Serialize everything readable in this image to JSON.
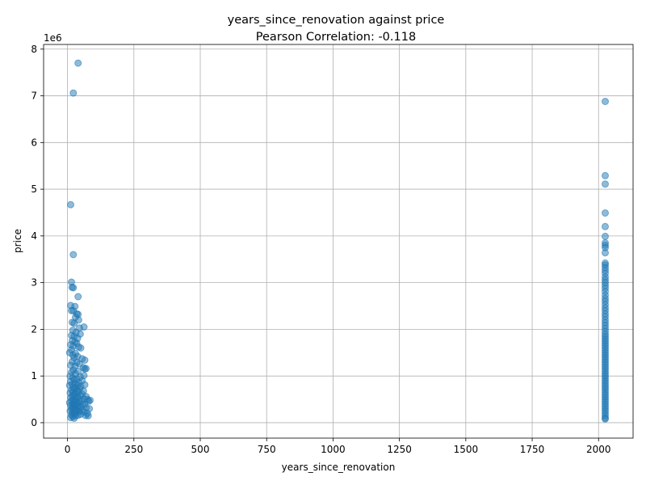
{
  "chart_data": {
    "type": "scatter",
    "title": "years_since_renovation against price",
    "subtitle": "Pearson Correlation: -0.118",
    "xlabel": "years_since_renovation",
    "ylabel": "price",
    "y_offset_label": "1e6",
    "xlim": [
      -90,
      2130
    ],
    "ylim": [
      -330000,
      8100000
    ],
    "x_ticks": [
      0,
      250,
      500,
      750,
      1000,
      1250,
      1500,
      1750,
      2000
    ],
    "y_ticks": [
      0,
      1000000,
      2000000,
      3000000,
      4000000,
      5000000,
      6000000,
      7000000,
      8000000
    ],
    "y_tick_labels": [
      "0",
      "1",
      "2",
      "3",
      "4",
      "5",
      "6",
      "7",
      "8"
    ],
    "grid": true,
    "series": [
      {
        "color": "#1f77b4",
        "points": [
          [
            40,
            7700000
          ],
          [
            22,
            7060000
          ],
          [
            12,
            4670000
          ],
          [
            22,
            3600000
          ],
          [
            15,
            3010000
          ],
          [
            17,
            2900000
          ],
          [
            22,
            2890000
          ],
          [
            40,
            2700000
          ],
          [
            12,
            2510000
          ],
          [
            28,
            2490000
          ],
          [
            15,
            2400000
          ],
          [
            22,
            2400000
          ],
          [
            35,
            2330000
          ],
          [
            40,
            2320000
          ],
          [
            30,
            2260000
          ],
          [
            42,
            2200000
          ],
          [
            18,
            2150000
          ],
          [
            25,
            2130000
          ],
          [
            62,
            2050000
          ],
          [
            45,
            2030000
          ],
          [
            20,
            1980000
          ],
          [
            32,
            1930000
          ],
          [
            48,
            1900000
          ],
          [
            15,
            1870000
          ],
          [
            25,
            1850000
          ],
          [
            38,
            1810000
          ],
          [
            18,
            1760000
          ],
          [
            28,
            1730000
          ],
          [
            35,
            1700000
          ],
          [
            12,
            1670000
          ],
          [
            22,
            1640000
          ],
          [
            42,
            1620000
          ],
          [
            50,
            1600000
          ],
          [
            15,
            1560000
          ],
          [
            8,
            1500000
          ],
          [
            30,
            1480000
          ],
          [
            20,
            1450000
          ],
          [
            38,
            1420000
          ],
          [
            25,
            1390000
          ],
          [
            55,
            1370000
          ],
          [
            65,
            1340000
          ],
          [
            18,
            1310000
          ],
          [
            35,
            1290000
          ],
          [
            45,
            1260000
          ],
          [
            12,
            1230000
          ],
          [
            28,
            1210000
          ],
          [
            60,
            1180000
          ],
          [
            70,
            1160000
          ],
          [
            65,
            1150000
          ],
          [
            22,
            1130000
          ],
          [
            40,
            1100000
          ],
          [
            15,
            1080000
          ],
          [
            30,
            1050000
          ],
          [
            62,
            1010000
          ],
          [
            10,
            1000000
          ],
          [
            48,
            980000
          ],
          [
            20,
            960000
          ],
          [
            35,
            940000
          ],
          [
            25,
            920000
          ],
          [
            55,
            900000
          ],
          [
            12,
            880000
          ],
          [
            42,
            860000
          ],
          [
            30,
            840000
          ],
          [
            18,
            820000
          ],
          [
            65,
            810000
          ],
          [
            8,
            800000
          ],
          [
            38,
            790000
          ],
          [
            50,
            770000
          ],
          [
            22,
            760000
          ],
          [
            28,
            740000
          ],
          [
            45,
            720000
          ],
          [
            15,
            700000
          ],
          [
            35,
            690000
          ],
          [
            60,
            680000
          ],
          [
            20,
            660000
          ],
          [
            40,
            650000
          ],
          [
            10,
            640000
          ],
          [
            30,
            620000
          ],
          [
            55,
            610000
          ],
          [
            25,
            600000
          ],
          [
            48,
            580000
          ],
          [
            18,
            570000
          ],
          [
            70,
            560000
          ],
          [
            38,
            550000
          ],
          [
            12,
            540000
          ],
          [
            32,
            520000
          ],
          [
            62,
            510000
          ],
          [
            22,
            500000
          ],
          [
            75,
            500000
          ],
          [
            85,
            480000
          ],
          [
            45,
            490000
          ],
          [
            15,
            470000
          ],
          [
            28,
            460000
          ],
          [
            52,
            450000
          ],
          [
            80,
            460000
          ],
          [
            35,
            440000
          ],
          [
            8,
            430000
          ],
          [
            42,
            420000
          ],
          [
            20,
            410000
          ],
          [
            65,
            400000
          ],
          [
            25,
            390000
          ],
          [
            58,
            380000
          ],
          [
            12,
            370000
          ],
          [
            38,
            360000
          ],
          [
            30,
            350000
          ],
          [
            48,
            340000
          ],
          [
            18,
            330000
          ],
          [
            70,
            320000
          ],
          [
            22,
            310000
          ],
          [
            40,
            300000
          ],
          [
            82,
            300000
          ],
          [
            15,
            290000
          ],
          [
            55,
            280000
          ],
          [
            28,
            270000
          ],
          [
            35,
            260000
          ],
          [
            10,
            250000
          ],
          [
            45,
            240000
          ],
          [
            62,
            230000
          ],
          [
            20,
            220000
          ],
          [
            32,
            210000
          ],
          [
            75,
            200000
          ],
          [
            25,
            190000
          ],
          [
            50,
            180000
          ],
          [
            15,
            170000
          ],
          [
            40,
            160000
          ],
          [
            68,
            155000
          ],
          [
            30,
            150000
          ],
          [
            78,
            150000
          ],
          [
            20,
            130000
          ],
          [
            12,
            110000
          ],
          [
            25,
            95000
          ],
          [
            2025,
            6880000
          ],
          [
            2025,
            5290000
          ],
          [
            2025,
            5110000
          ],
          [
            2025,
            4490000
          ],
          [
            2025,
            4200000
          ],
          [
            2025,
            3990000
          ],
          [
            2025,
            3850000
          ],
          [
            2025,
            3800000
          ],
          [
            2025,
            3750000
          ],
          [
            2025,
            3640000
          ],
          [
            2025,
            3420000
          ],
          [
            2025,
            3380000
          ],
          [
            2025,
            3320000
          ],
          [
            2025,
            3260000
          ],
          [
            2025,
            3200000
          ],
          [
            2025,
            3120000
          ],
          [
            2025,
            3060000
          ],
          [
            2025,
            3000000
          ],
          [
            2025,
            2940000
          ],
          [
            2025,
            2880000
          ],
          [
            2025,
            2810000
          ],
          [
            2025,
            2730000
          ],
          [
            2025,
            2660000
          ],
          [
            2025,
            2600000
          ],
          [
            2025,
            2530000
          ],
          [
            2025,
            2460000
          ],
          [
            2025,
            2400000
          ],
          [
            2025,
            2330000
          ],
          [
            2025,
            2270000
          ],
          [
            2025,
            2200000
          ],
          [
            2025,
            2140000
          ],
          [
            2025,
            2080000
          ],
          [
            2025,
            2020000
          ],
          [
            2025,
            1960000
          ],
          [
            2025,
            1900000
          ],
          [
            2025,
            1850000
          ],
          [
            2025,
            1800000
          ],
          [
            2025,
            1750000
          ],
          [
            2025,
            1700000
          ],
          [
            2025,
            1650000
          ],
          [
            2025,
            1600000
          ],
          [
            2025,
            1550000
          ],
          [
            2025,
            1500000
          ],
          [
            2025,
            1450000
          ],
          [
            2025,
            1400000
          ],
          [
            2025,
            1350000
          ],
          [
            2025,
            1300000
          ],
          [
            2025,
            1250000
          ],
          [
            2025,
            1200000
          ],
          [
            2025,
            1150000
          ],
          [
            2025,
            1100000
          ],
          [
            2025,
            1050000
          ],
          [
            2025,
            1000000
          ],
          [
            2025,
            950000
          ],
          [
            2025,
            900000
          ],
          [
            2025,
            850000
          ],
          [
            2025,
            800000
          ],
          [
            2025,
            750000
          ],
          [
            2025,
            700000
          ],
          [
            2025,
            650000
          ],
          [
            2025,
            600000
          ],
          [
            2025,
            550000
          ],
          [
            2025,
            500000
          ],
          [
            2025,
            450000
          ],
          [
            2025,
            400000
          ],
          [
            2025,
            350000
          ],
          [
            2025,
            300000
          ],
          [
            2025,
            250000
          ],
          [
            2025,
            200000
          ],
          [
            2025,
            150000
          ],
          [
            2025,
            100000
          ],
          [
            2025,
            80000
          ]
        ]
      }
    ]
  }
}
